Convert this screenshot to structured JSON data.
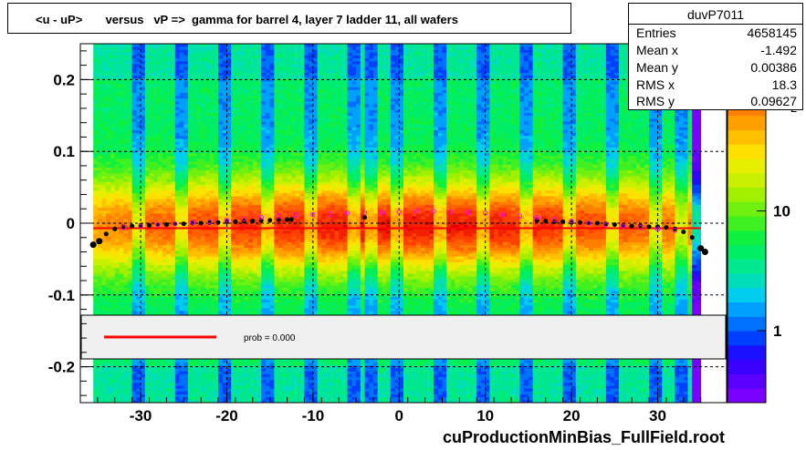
{
  "title": "<u - uP>       versus   vP =>  gamma for barrel 4, layer 7 ladder 11, all wafers",
  "stats": {
    "name": "duvP7011",
    "rows": [
      {
        "key": "Entries",
        "value": "4658145"
      },
      {
        "key": "Mean x",
        "value": "-1.492"
      },
      {
        "key": "Mean y",
        "value": "0.00386"
      },
      {
        "key": "RMS x",
        "value": "18.3"
      },
      {
        "key": "RMS y",
        "value": "0.09627"
      }
    ]
  },
  "file_label": "cuProductionMinBias_FullField.root",
  "legend": {
    "fit_label": "prob = 0.000",
    "line_color": "#ff0000"
  },
  "colors": {
    "profile_black": "#000000",
    "profile_magenta": "#ff00ff",
    "fit_red": "#ff0000"
  },
  "chart_data": {
    "type": "heatmap",
    "title": "<u - uP>       versus   vP =>  gamma for barrel 4, layer 7 ladder 11, all wafers",
    "xlabel": "",
    "ylabel": "",
    "xlim": [
      -37,
      38
    ],
    "ylim": [
      -0.25,
      0.25
    ],
    "x_ticks": [
      "-30",
      "-20",
      "-10",
      "0",
      "10",
      "20",
      "30"
    ],
    "x_tick_values": [
      -30,
      -20,
      -10,
      0,
      10,
      20,
      30
    ],
    "y_ticks": [
      "0.2",
      "0.1",
      "0",
      "-0.1",
      "-0.2"
    ],
    "y_tick_values": [
      0.2,
      0.1,
      0,
      -0.1,
      -0.2
    ],
    "z_scale": "log",
    "z_ticks": [
      "10",
      "1"
    ],
    "z_tick_values": [
      10,
      1
    ],
    "z_exponent_label": "2",
    "grid": true,
    "fit_line_y": -0.007,
    "series": [
      {
        "marker": "black-dots",
        "x": [
          -35.5,
          -34.8,
          -34.0,
          -33.0,
          -32.0,
          -31.0,
          -30.0,
          -29.0,
          -28.0,
          -27.0,
          -26.0,
          -25.0,
          -24.0,
          -23.0,
          -22.0,
          -21.0,
          -20.0,
          -19.0,
          -18.0,
          -17.0,
          -16.0,
          -15.0,
          -14.0,
          -13.0,
          -12.5,
          -4.0,
          16.0,
          17.0,
          18.0,
          19.0,
          20.0,
          21.0,
          22.0,
          23.0,
          24.0,
          25.0,
          26.0,
          27.0,
          28.0,
          29.0,
          30.0,
          31.0,
          32.0,
          33.0,
          34.0,
          35.0,
          35.5
        ],
        "y": [
          -0.03,
          -0.025,
          -0.015,
          -0.008,
          -0.005,
          -0.004,
          -0.003,
          -0.003,
          -0.002,
          -0.002,
          -0.001,
          -0.001,
          0.0,
          0.0,
          0.001,
          0.001,
          0.002,
          0.002,
          0.003,
          0.003,
          0.004,
          0.004,
          0.005,
          0.005,
          0.005,
          0.008,
          0.004,
          0.003,
          0.002,
          0.002,
          0.001,
          0.001,
          0.0,
          0.0,
          -0.001,
          -0.002,
          -0.003,
          -0.004,
          -0.004,
          -0.005,
          -0.005,
          -0.006,
          -0.008,
          -0.012,
          -0.02,
          -0.035,
          -0.04
        ]
      },
      {
        "marker": "magenta-circles",
        "x": [
          -32,
          -30,
          -28,
          -26,
          -24,
          -22,
          -20,
          -18,
          -16,
          -14,
          -12,
          -10,
          -8,
          -6,
          -4,
          -2,
          0,
          2,
          4,
          6,
          8,
          10,
          12,
          14,
          16,
          18,
          20,
          22,
          24,
          26,
          28,
          30,
          32
        ],
        "y": [
          -0.006,
          -0.004,
          -0.002,
          -0.001,
          0.001,
          0.002,
          0.004,
          0.006,
          0.008,
          0.01,
          0.011,
          0.012,
          0.013,
          0.014,
          0.014,
          0.015,
          0.016,
          0.017,
          0.017,
          0.016,
          0.015,
          0.014,
          0.012,
          0.01,
          0.008,
          0.005,
          0.003,
          0.0,
          -0.002,
          -0.004,
          -0.006,
          -0.008,
          -0.01
        ]
      }
    ]
  }
}
